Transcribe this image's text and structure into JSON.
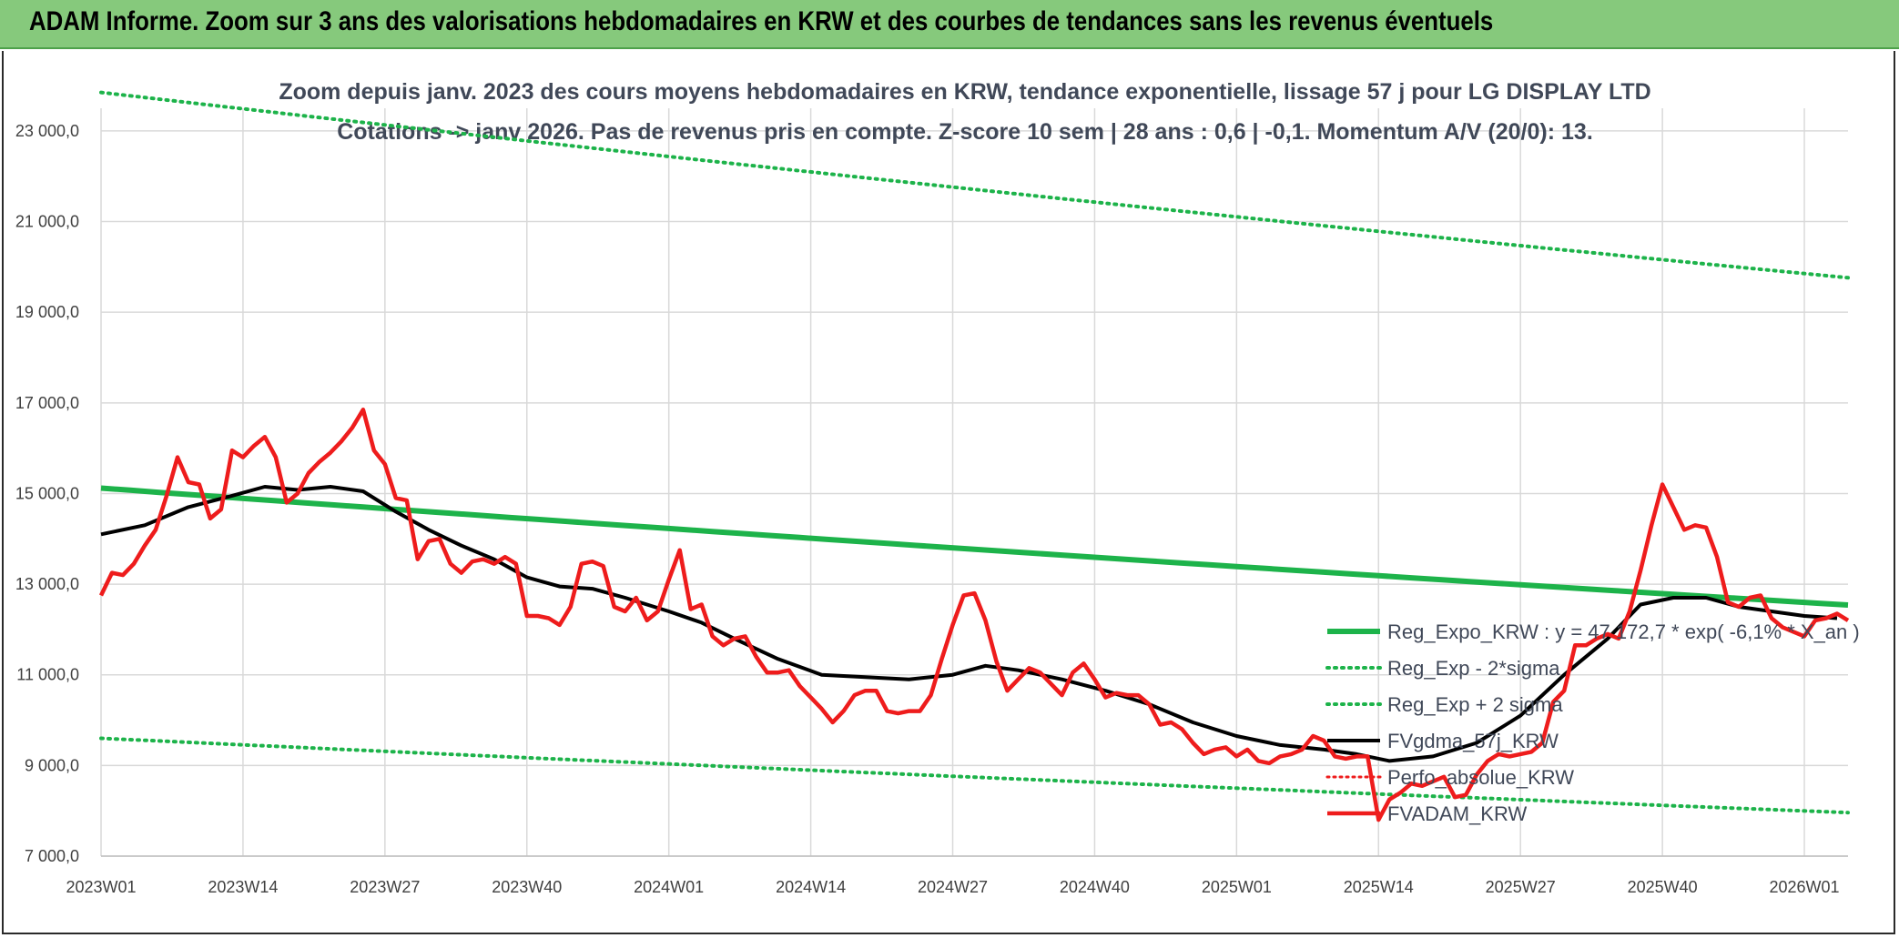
{
  "header": {
    "title": "ADAM Informe. Zoom sur 3 ans des valorisations hebdomadaires en KRW et des courbes de tendances sans les revenus éventuels"
  },
  "colors": {
    "banner": "#86c97c",
    "trend": "#1db34a",
    "price": "#ee1c1c",
    "smooth": "#000000",
    "grid": "#d9d9d9"
  },
  "chart_data": {
    "type": "line",
    "title_line1": "Zoom depuis janv. 2023 des cours moyens hebdomadaires en KRW, tendance exponentielle, lissage 57 j pour LG DISPLAY LTD",
    "title_line2": "Cotations -> janv 2026. Pas de revenus pris en compte. Z-score 10 sem | 28 ans : 0,6 | -0,1. Momentum A/V (20/0): 13.",
    "ylim": [
      7000,
      23500
    ],
    "y_ticks": [
      7000,
      9000,
      11000,
      13000,
      15000,
      17000,
      19000,
      21000,
      23000
    ],
    "y_tick_labels": [
      "7 000,0",
      "9 000,0",
      "11 000,0",
      "13 000,0",
      "15 000,0",
      "17 000,0",
      "19 000,0",
      "21 000,0",
      "23 000,0"
    ],
    "x_ticks": [
      0,
      13,
      26,
      39,
      52,
      65,
      78,
      91,
      104,
      117,
      130,
      143,
      156
    ],
    "x_tick_labels": [
      "2023W01",
      "2023W14",
      "2023W27",
      "2023W40",
      "2024W01",
      "2024W14",
      "2024W27",
      "2024W40",
      "2025W01",
      "2025W14",
      "2025W27",
      "2025W40",
      "2026W01"
    ],
    "x_max": 160,
    "series": [
      {
        "name": "Reg_Expo_KRW : y = 47 172,7 * exp( -6,1% * X_an )",
        "style": "solid-green",
        "start": 15120,
        "end": 12540
      },
      {
        "name": "Reg_Exp - 2*sigma",
        "style": "dotted-green",
        "start": 9600,
        "end": 7960
      },
      {
        "name": "Reg_Exp + 2 sigma",
        "style": "dotted-green",
        "start": 23850,
        "end": 19760
      },
      {
        "name": "FVgdma_57j_KRW",
        "style": "solid-black",
        "points": [
          [
            0,
            14100
          ],
          [
            4,
            14300
          ],
          [
            8,
            14700
          ],
          [
            12,
            14950
          ],
          [
            15,
            15150
          ],
          [
            18,
            15080
          ],
          [
            21,
            15150
          ],
          [
            24,
            15050
          ],
          [
            27,
            14600
          ],
          [
            30,
            14200
          ],
          [
            33,
            13850
          ],
          [
            36,
            13550
          ],
          [
            39,
            13150
          ],
          [
            42,
            12950
          ],
          [
            45,
            12900
          ],
          [
            48,
            12700
          ],
          [
            52,
            12400
          ],
          [
            55,
            12150
          ],
          [
            58,
            11800
          ],
          [
            62,
            11350
          ],
          [
            66,
            11000
          ],
          [
            70,
            10950
          ],
          [
            74,
            10900
          ],
          [
            78,
            11000
          ],
          [
            81,
            11200
          ],
          [
            84,
            11100
          ],
          [
            88,
            10900
          ],
          [
            92,
            10650
          ],
          [
            96,
            10350
          ],
          [
            100,
            9950
          ],
          [
            104,
            9650
          ],
          [
            108,
            9450
          ],
          [
            112,
            9350
          ],
          [
            115,
            9250
          ],
          [
            118,
            9100
          ],
          [
            122,
            9200
          ],
          [
            126,
            9500
          ],
          [
            130,
            10100
          ],
          [
            134,
            11000
          ],
          [
            138,
            11800
          ],
          [
            141,
            12550
          ],
          [
            144,
            12700
          ],
          [
            147,
            12700
          ],
          [
            150,
            12500
          ],
          [
            153,
            12400
          ],
          [
            156,
            12300
          ],
          [
            159,
            12250
          ]
        ]
      },
      {
        "name": "Perfo_absolue_KRW",
        "style": "dotted-red",
        "points": []
      },
      {
        "name": "FVADAM_KRW",
        "style": "solid-red",
        "points": [
          [
            0,
            12750
          ],
          [
            1,
            13250
          ],
          [
            2,
            13200
          ],
          [
            3,
            13450
          ],
          [
            4,
            13850
          ],
          [
            5,
            14200
          ],
          [
            6,
            14950
          ],
          [
            7,
            15800
          ],
          [
            8,
            15250
          ],
          [
            9,
            15200
          ],
          [
            10,
            14450
          ],
          [
            11,
            14650
          ],
          [
            12,
            15950
          ],
          [
            13,
            15800
          ],
          [
            14,
            16050
          ],
          [
            15,
            16250
          ],
          [
            16,
            15800
          ],
          [
            17,
            14800
          ],
          [
            18,
            15000
          ],
          [
            19,
            15450
          ],
          [
            20,
            15700
          ],
          [
            21,
            15900
          ],
          [
            22,
            16150
          ],
          [
            23,
            16450
          ],
          [
            24,
            16850
          ],
          [
            25,
            15950
          ],
          [
            26,
            15650
          ],
          [
            27,
            14900
          ],
          [
            28,
            14850
          ],
          [
            29,
            13550
          ],
          [
            30,
            13950
          ],
          [
            31,
            14000
          ],
          [
            32,
            13450
          ],
          [
            33,
            13250
          ],
          [
            34,
            13500
          ],
          [
            35,
            13550
          ],
          [
            36,
            13450
          ],
          [
            37,
            13600
          ],
          [
            38,
            13450
          ],
          [
            39,
            12300
          ],
          [
            40,
            12300
          ],
          [
            41,
            12250
          ],
          [
            42,
            12100
          ],
          [
            43,
            12500
          ],
          [
            44,
            13450
          ],
          [
            45,
            13500
          ],
          [
            46,
            13400
          ],
          [
            47,
            12500
          ],
          [
            48,
            12400
          ],
          [
            49,
            12700
          ],
          [
            50,
            12200
          ],
          [
            51,
            12400
          ],
          [
            52,
            13100
          ],
          [
            53,
            13750
          ],
          [
            54,
            12450
          ],
          [
            55,
            12550
          ],
          [
            56,
            11850
          ],
          [
            57,
            11650
          ],
          [
            58,
            11800
          ],
          [
            59,
            11850
          ],
          [
            60,
            11400
          ],
          [
            61,
            11050
          ],
          [
            62,
            11050
          ],
          [
            63,
            11100
          ],
          [
            64,
            10750
          ],
          [
            65,
            10500
          ],
          [
            66,
            10250
          ],
          [
            67,
            9950
          ],
          [
            68,
            10200
          ],
          [
            69,
            10550
          ],
          [
            70,
            10650
          ],
          [
            71,
            10650
          ],
          [
            72,
            10200
          ],
          [
            73,
            10150
          ],
          [
            74,
            10200
          ],
          [
            75,
            10200
          ],
          [
            76,
            10550
          ],
          [
            77,
            11350
          ],
          [
            78,
            12100
          ],
          [
            79,
            12750
          ],
          [
            80,
            12800
          ],
          [
            81,
            12200
          ],
          [
            82,
            11300
          ],
          [
            83,
            10650
          ],
          [
            84,
            10900
          ],
          [
            85,
            11150
          ],
          [
            86,
            11050
          ],
          [
            87,
            10800
          ],
          [
            88,
            10550
          ],
          [
            89,
            11050
          ],
          [
            90,
            11250
          ],
          [
            91,
            10900
          ],
          [
            92,
            10500
          ],
          [
            93,
            10600
          ],
          [
            94,
            10550
          ],
          [
            95,
            10550
          ],
          [
            96,
            10350
          ],
          [
            97,
            9900
          ],
          [
            98,
            9950
          ],
          [
            99,
            9800
          ],
          [
            100,
            9500
          ],
          [
            101,
            9250
          ],
          [
            102,
            9350
          ],
          [
            103,
            9400
          ],
          [
            104,
            9200
          ],
          [
            105,
            9350
          ],
          [
            106,
            9100
          ],
          [
            107,
            9050
          ],
          [
            108,
            9200
          ],
          [
            109,
            9250
          ],
          [
            110,
            9350
          ],
          [
            111,
            9650
          ],
          [
            112,
            9550
          ],
          [
            113,
            9200
          ],
          [
            114,
            9150
          ],
          [
            115,
            9200
          ],
          [
            116,
            9200
          ],
          [
            117,
            7800
          ],
          [
            118,
            8250
          ],
          [
            119,
            8400
          ],
          [
            120,
            8600
          ],
          [
            121,
            8550
          ],
          [
            122,
            8650
          ],
          [
            123,
            8750
          ],
          [
            124,
            8300
          ],
          [
            125,
            8350
          ],
          [
            126,
            8800
          ],
          [
            127,
            9100
          ],
          [
            128,
            9250
          ],
          [
            129,
            9200
          ],
          [
            130,
            9250
          ],
          [
            131,
            9300
          ],
          [
            132,
            9500
          ],
          [
            133,
            10400
          ],
          [
            134,
            10650
          ],
          [
            135,
            11650
          ],
          [
            136,
            11650
          ],
          [
            137,
            11800
          ],
          [
            138,
            11900
          ],
          [
            139,
            11800
          ],
          [
            140,
            12400
          ],
          [
            141,
            13300
          ],
          [
            142,
            14300
          ],
          [
            143,
            15200
          ],
          [
            144,
            14700
          ],
          [
            145,
            14200
          ],
          [
            146,
            14300
          ],
          [
            147,
            14250
          ],
          [
            148,
            13600
          ],
          [
            149,
            12600
          ],
          [
            150,
            12500
          ],
          [
            151,
            12700
          ],
          [
            152,
            12750
          ],
          [
            153,
            12250
          ],
          [
            154,
            12050
          ],
          [
            155,
            11950
          ],
          [
            156,
            11850
          ],
          [
            157,
            12200
          ],
          [
            158,
            12250
          ],
          [
            159,
            12350
          ],
          [
            160,
            12200
          ]
        ]
      }
    ],
    "legend_position": "bottom-right"
  }
}
